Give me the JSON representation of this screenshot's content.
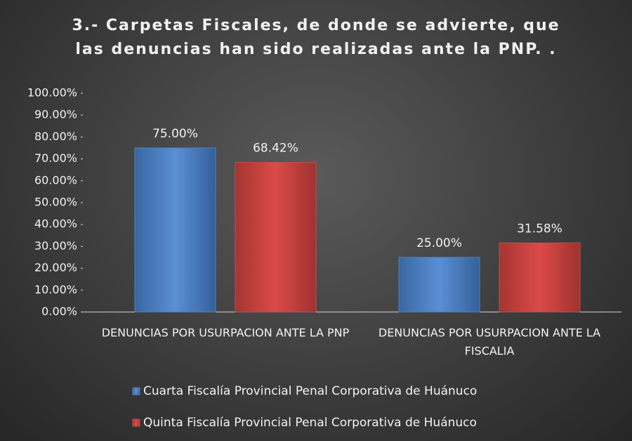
{
  "chart_data": {
    "type": "bar",
    "title": "3.- Carpetas Fiscales, de donde se advierte, que las denuncias han sido realizadas ante la PNP. .",
    "categories": [
      "DENUNCIAS POR USURPACION ANTE LA PNP",
      "DENUNCIAS POR USURPACION ANTE LA FISCALIA"
    ],
    "series": [
      {
        "name": "Cuarta Fiscalía Provincial Penal Corporativa de Huánuco",
        "color": "#4f81bd",
        "values": [
          75,
          25
        ],
        "value_labels": [
          "75.00%",
          "25.00%"
        ]
      },
      {
        "name": "Quinta Fiscalía Provincial Penal Corporativa de Huánuco",
        "color": "#c0504d",
        "values": [
          68.42,
          31.58
        ],
        "value_labels": [
          "68.42%",
          "31.58%"
        ]
      }
    ],
    "ylim": [
      0,
      100
    ],
    "yticks": [
      {
        "value": 0,
        "label": "0.00%"
      },
      {
        "value": 10,
        "label": "10.00%"
      },
      {
        "value": 20,
        "label": "20.00%"
      },
      {
        "value": 30,
        "label": "30.00%"
      },
      {
        "value": 40,
        "label": "40.00%"
      },
      {
        "value": 50,
        "label": "50.00%"
      },
      {
        "value": 60,
        "label": "60.00%"
      },
      {
        "value": 70,
        "label": "70.00%"
      },
      {
        "value": 80,
        "label": "80.00%"
      },
      {
        "value": 90,
        "label": "90.00%"
      },
      {
        "value": 100,
        "label": "100.00%"
      }
    ],
    "legend": "bottom"
  }
}
